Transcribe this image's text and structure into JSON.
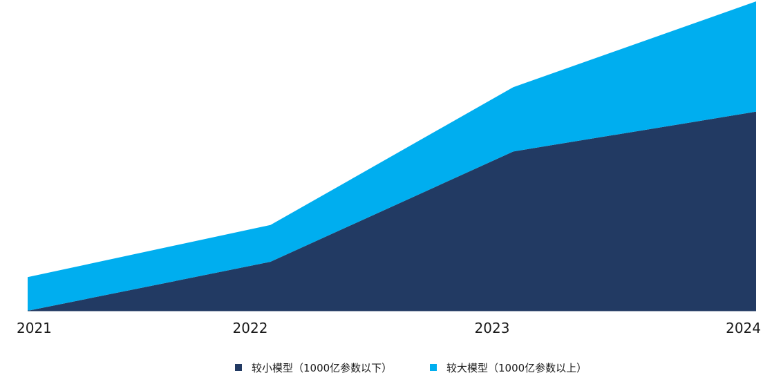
{
  "chart_data": {
    "type": "area",
    "stacked": true,
    "x": [
      "2021",
      "2022",
      "2023",
      "2024"
    ],
    "series": [
      {
        "name": "较小模型（1000亿参数以下）",
        "values": [
          0,
          16,
          52,
          65
        ],
        "color": "#223A63"
      },
      {
        "name": "较大模型（1000亿参数以上）",
        "values": [
          11,
          12,
          21,
          36
        ],
        "color": "#00AEEF"
      }
    ],
    "ylim": [
      0,
      101
    ],
    "grid": false,
    "legend": "bottom-center",
    "title": "",
    "xlabel": "",
    "ylabel": ""
  }
}
